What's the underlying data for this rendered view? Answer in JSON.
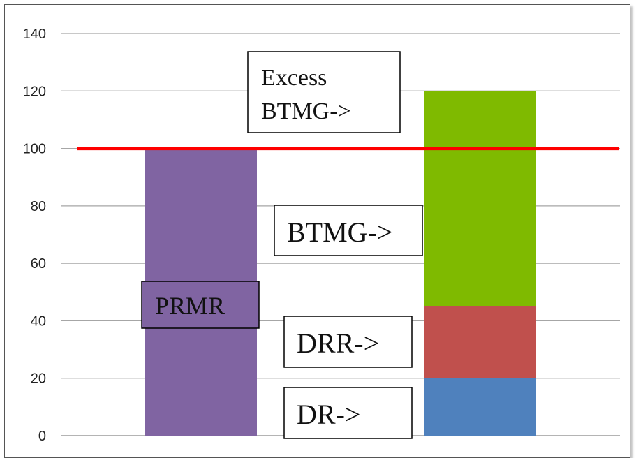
{
  "chart_data": {
    "type": "bar",
    "stacked": true,
    "ylim": [
      0,
      140
    ],
    "yticks": [
      0,
      20,
      40,
      60,
      80,
      100,
      120,
      140
    ],
    "grid": true,
    "categories": [
      "",
      ""
    ],
    "series": [
      {
        "values": [
          100,
          0
        ],
        "color": "#8064A2"
      },
      {
        "values": [
          0,
          20
        ],
        "color": "#4F81BD"
      },
      {
        "values": [
          0,
          25
        ],
        "color": "#C0504D"
      },
      {
        "values": [
          0,
          55
        ],
        "color": "#7FBA00"
      },
      {
        "values": [
          0,
          20
        ],
        "color": "#7FBA00"
      }
    ],
    "reference_line": {
      "y": 100,
      "color": "#FF0000"
    },
    "annotations": {
      "excess_line1": "Excess",
      "excess_line2": "BTMG->",
      "btmg": "BTMG->",
      "prmr": "PRMR",
      "drr": "DRR->",
      "dr": "DR->"
    }
  }
}
